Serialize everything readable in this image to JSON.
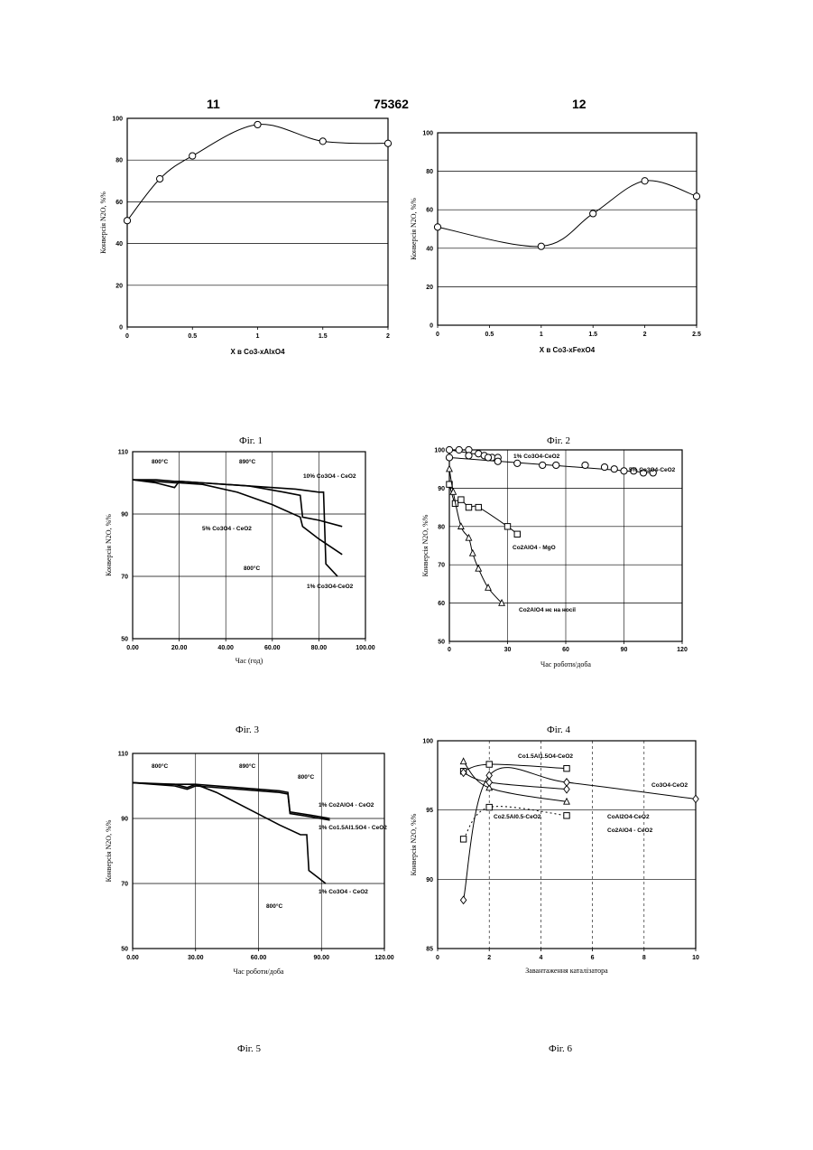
{
  "page": {
    "left_number": "11",
    "center_number": "75362",
    "right_number": "12"
  },
  "captions": {
    "fig1": "Фіг. 1",
    "fig2": "Фіг. 2",
    "fig3": "Фіг. 3",
    "fig4": "Фіг. 4",
    "fig5": "Фіг. 5",
    "fig6": "Фіг. 6"
  },
  "chart_data": [
    {
      "id": "fig1",
      "type": "line",
      "xlabel": "X в Co3-xAlxO4",
      "ylabel": "Конверсія N2O, %%",
      "xlim": [
        0,
        2
      ],
      "ylim": [
        0,
        100
      ],
      "xticks": [
        "0",
        "0.5",
        "1",
        "1.5",
        "2"
      ],
      "yticks": [
        "0",
        "20",
        "40",
        "60",
        "80",
        "100"
      ],
      "series": [
        {
          "x": [
            0,
            0.25,
            0.5,
            1,
            1.5,
            2
          ],
          "y": [
            51,
            71,
            82,
            97,
            89,
            88
          ]
        }
      ]
    },
    {
      "id": "fig2",
      "type": "line",
      "xlabel": "X в Co3-xFexO4",
      "ylabel": "Конверсія N2O, %%",
      "xlim": [
        0,
        2.5
      ],
      "ylim": [
        0,
        100
      ],
      "xticks": [
        "0",
        "0.5",
        "1",
        "1.5",
        "2",
        "2.5"
      ],
      "yticks": [
        "0",
        "20",
        "40",
        "60",
        "80",
        "100"
      ],
      "series": [
        {
          "x": [
            0,
            1,
            1.5,
            2,
            2.5
          ],
          "y": [
            51,
            41,
            58,
            75,
            67
          ]
        }
      ]
    },
    {
      "id": "fig3",
      "type": "line",
      "xlabel": "Час (год)",
      "ylabel": "Конверсія N2O, %%",
      "xlim": [
        0,
        100
      ],
      "ylim": [
        50,
        110
      ],
      "xticks": [
        "0.00",
        "20.00",
        "40.00",
        "60.00",
        "80.00",
        "100.00"
      ],
      "yticks": [
        "50",
        "70",
        "90",
        "110"
      ],
      "annotations": [
        "800°C",
        "890°C",
        "800°C"
      ],
      "series": [
        {
          "name": "10% Co3O4 - CeO2",
          "x": [
            0,
            10,
            18,
            20,
            30,
            50,
            65,
            72,
            73,
            80,
            90
          ],
          "y": [
            101,
            101,
            100.5,
            100.5,
            100,
            99,
            97,
            96,
            89,
            88,
            86
          ]
        },
        {
          "name": "5% Co3O4 - CeO2",
          "x": [
            0,
            18,
            20,
            30,
            45,
            60,
            72,
            73,
            80,
            90
          ],
          "y": [
            101,
            100,
            100,
            99.5,
            97,
            93,
            89,
            86,
            82,
            77
          ]
        },
        {
          "name": "1% Co3O4-CeO2",
          "x": [
            0,
            10,
            18,
            20,
            30,
            50,
            70,
            80,
            82,
            83,
            88
          ],
          "y": [
            101,
            100,
            98.5,
            100.5,
            100,
            99,
            98,
            97,
            97,
            74,
            70
          ]
        }
      ]
    },
    {
      "id": "fig4",
      "type": "scatter",
      "xlabel": "Час роботи/доба",
      "ylabel": "Конверсія N2O, %%",
      "xlim": [
        0,
        120
      ],
      "ylim": [
        50,
        100
      ],
      "xticks": [
        "0",
        "30",
        "60",
        "90",
        "120"
      ],
      "yticks": [
        "50",
        "60",
        "70",
        "80",
        "90",
        "100"
      ],
      "series": [
        {
          "name": "1% Co3O4-CeO2",
          "x": [
            0,
            5,
            10,
            15,
            18,
            22,
            25
          ],
          "y": [
            100,
            100,
            100,
            99,
            98.5,
            98,
            98
          ]
        },
        {
          "name": "5% Co3O4-CeO2",
          "x": [
            0,
            10,
            20,
            25,
            35,
            48,
            55,
            70,
            80,
            85,
            90,
            95,
            100,
            105
          ],
          "y": [
            98,
            98.5,
            98,
            97,
            96.5,
            96,
            96,
            96,
            95.5,
            95,
            94.5,
            94.5,
            94,
            94
          ]
        },
        {
          "name": "Co2AlO4 - MgO",
          "x": [
            0,
            3,
            6,
            10,
            15,
            30,
            35
          ],
          "y": [
            91,
            86,
            87,
            85,
            85,
            80,
            78
          ]
        },
        {
          "name": "Co2AlO4 нє на носії",
          "x": [
            0,
            2,
            6,
            10,
            12,
            15,
            20,
            27
          ],
          "y": [
            95,
            89,
            80,
            77,
            73,
            69,
            64,
            60
          ]
        }
      ]
    },
    {
      "id": "fig5",
      "type": "line",
      "xlabel": "Час роботи/доба",
      "ylabel": "Конверсія N2O, %%",
      "xlim": [
        0,
        120
      ],
      "ylim": [
        50,
        110
      ],
      "xticks": [
        "0.00",
        "30.00",
        "60.00",
        "90.00",
        "120.00"
      ],
      "yticks": [
        "50",
        "70",
        "90",
        "110"
      ],
      "annotations": [
        "800°C",
        "890°C",
        "800°C",
        "800°C"
      ],
      "series": [
        {
          "name": "1% Co2AlO4 - CeO2",
          "x": [
            0,
            20,
            26,
            30,
            50,
            70,
            74,
            75,
            85,
            94
          ],
          "y": [
            101,
            100.5,
            99.5,
            100.5,
            99.5,
            98.5,
            98,
            92,
            91,
            90
          ]
        },
        {
          "name": "1% Co1.5Al1.5O4 - CeO2",
          "x": [
            0,
            20,
            26,
            30,
            50,
            70,
            74,
            75,
            85,
            94
          ],
          "y": [
            101,
            100,
            99,
            100,
            99,
            98,
            97.5,
            91.5,
            90.5,
            89.5
          ]
        },
        {
          "name": "1% Co3O4 - CeO2",
          "x": [
            0,
            15,
            30,
            40,
            55,
            70,
            80,
            83,
            84,
            88,
            92
          ],
          "y": [
            101,
            100.5,
            100.5,
            98,
            93,
            88,
            85,
            85,
            74,
            72,
            70
          ]
        }
      ]
    },
    {
      "id": "fig6",
      "type": "line",
      "xlabel": "Завантаження каталізатора",
      "ylabel": "Конверсія N2O, %%",
      "xlim": [
        0,
        10
      ],
      "ylim": [
        85,
        100
      ],
      "xticks": [
        "0",
        "2",
        "4",
        "6",
        "8",
        "10"
      ],
      "yticks": [
        "85",
        "90",
        "95",
        "100"
      ],
      "series": [
        {
          "name": "Co1.5Al1.5O4-CeO2",
          "x": [
            1,
            2,
            5
          ],
          "y": [
            97.8,
            98.3,
            98
          ]
        },
        {
          "name": "Co2.5Al0.5-CeO2",
          "x": [
            1,
            2,
            5
          ],
          "y": [
            92.9,
            95.2,
            94.6
          ]
        },
        {
          "name": "CoAl2O4-CeO2",
          "x": [
            1,
            2,
            5
          ],
          "y": [
            98.5,
            96.6,
            95.6
          ]
        },
        {
          "name": "Co2AlO4 - CeO2",
          "x": [
            1,
            2,
            5
          ],
          "y": [
            97.7,
            97,
            96.5
          ]
        },
        {
          "name": "Co3O4-CeO2",
          "x": [
            1,
            2,
            5,
            10
          ],
          "y": [
            88.5,
            97.5,
            97,
            95.8
          ]
        }
      ]
    }
  ]
}
